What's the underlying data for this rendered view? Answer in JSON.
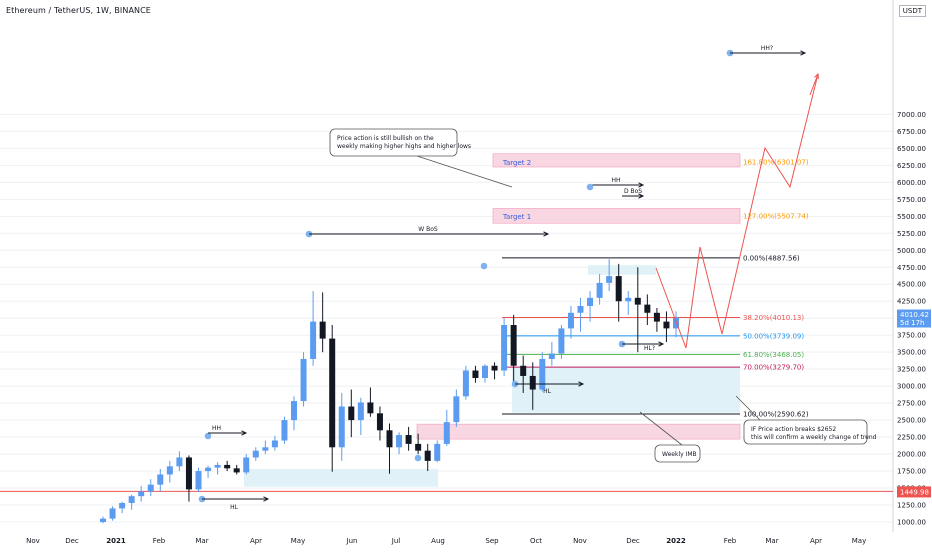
{
  "header": {
    "title": "Ethereum / TetherUS, 1W, BINANCE",
    "currency_button": "USDT"
  },
  "colors": {
    "up": "#5b9cf0",
    "down": "#131722",
    "red": "#ef5350",
    "green": "#4caf50",
    "blue": "#2196f3",
    "magenta": "#e91e63",
    "orange": "#ff9800",
    "pink_box": "#f8d7e3",
    "cyan_box": "#e0f2f7",
    "text": "#131722",
    "axis_text": "#6a6d78",
    "grid": "#eef0f3"
  },
  "chart_data": {
    "type": "candlestick",
    "title": "Ethereum / TetherUS, 1W, BINANCE",
    "ylim": [
      950,
      7100
    ],
    "y_ticks": [
      1000,
      1250,
      1500,
      1750,
      2000,
      2250,
      2500,
      2750,
      3000,
      3250,
      3500,
      3750,
      4000,
      4250,
      4500,
      4750,
      5000,
      5250,
      5500,
      5750,
      6000,
      6250,
      6500,
      6750,
      7000
    ],
    "x_ticks": [
      "Nov",
      "Dec",
      "2021",
      "Feb",
      "Mar",
      "Apr",
      "May",
      "Jun",
      "Jul",
      "Aug",
      "Sep",
      "Oct",
      "Nov",
      "Dec",
      "2022",
      "Feb",
      "Mar",
      "Apr",
      "May"
    ],
    "candles": [
      [
        1000,
        1080,
        980,
        1050
      ],
      [
        1050,
        1230,
        1020,
        1200
      ],
      [
        1200,
        1300,
        1130,
        1280
      ],
      [
        1280,
        1400,
        1180,
        1380
      ],
      [
        1380,
        1530,
        1300,
        1450
      ],
      [
        1450,
        1630,
        1380,
        1550
      ],
      [
        1550,
        1780,
        1450,
        1700
      ],
      [
        1700,
        1900,
        1580,
        1820
      ],
      [
        1820,
        2040,
        1750,
        1950
      ],
      [
        1950,
        1980,
        1300,
        1480
      ],
      [
        1480,
        1800,
        1440,
        1750
      ],
      [
        1750,
        1830,
        1650,
        1800
      ],
      [
        1800,
        1880,
        1700,
        1840
      ],
      [
        1840,
        1900,
        1750,
        1790
      ],
      [
        1790,
        1840,
        1700,
        1730
      ],
      [
        1730,
        2000,
        1700,
        1950
      ],
      [
        1950,
        2100,
        1900,
        2050
      ],
      [
        2050,
        2200,
        2000,
        2100
      ],
      [
        2100,
        2270,
        2050,
        2200
      ],
      [
        2200,
        2550,
        2150,
        2500
      ],
      [
        2500,
        2850,
        2350,
        2780
      ],
      [
        2780,
        3500,
        2700,
        3400
      ],
      [
        3400,
        4400,
        3300,
        3950
      ],
      [
        3950,
        4380,
        3500,
        3700
      ],
      [
        3700,
        3900,
        1740,
        2100
      ],
      [
        2100,
        2900,
        1900,
        2700
      ],
      [
        2700,
        2950,
        2250,
        2500
      ],
      [
        2500,
        2830,
        2280,
        2760
      ],
      [
        2760,
        2980,
        2550,
        2600
      ],
      [
        2600,
        2700,
        2200,
        2350
      ],
      [
        2350,
        2450,
        1710,
        2100
      ],
      [
        2100,
        2320,
        2000,
        2280
      ],
      [
        2280,
        2400,
        2050,
        2150
      ],
      [
        2150,
        2300,
        2000,
        2050
      ],
      [
        2050,
        2150,
        1750,
        1900
      ],
      [
        1900,
        2200,
        1880,
        2150
      ],
      [
        2150,
        2650,
        2120,
        2470
      ],
      [
        2470,
        2950,
        2400,
        2850
      ],
      [
        2850,
        3300,
        2800,
        3230
      ],
      [
        3230,
        3300,
        3050,
        3120
      ],
      [
        3120,
        3320,
        3050,
        3300
      ],
      [
        3300,
        3350,
        3100,
        3230
      ],
      [
        3230,
        4000,
        3150,
        3900
      ],
      [
        3900,
        4050,
        3050,
        3300
      ],
      [
        3300,
        3450,
        2900,
        3150
      ],
      [
        3150,
        3350,
        2650,
        2950
      ],
      [
        2950,
        3500,
        2920,
        3400
      ],
      [
        3400,
        3650,
        3300,
        3480
      ],
      [
        3480,
        3900,
        3400,
        3850
      ],
      [
        3850,
        4180,
        3700,
        4080
      ],
      [
        4080,
        4300,
        3800,
        4180
      ],
      [
        4180,
        4400,
        3950,
        4300
      ],
      [
        4300,
        4650,
        4200,
        4520
      ],
      [
        4520,
        4870,
        4400,
        4620
      ],
      [
        4620,
        4800,
        3950,
        4250
      ],
      [
        4250,
        4400,
        4050,
        4300
      ],
      [
        4300,
        4750,
        3500,
        4200
      ],
      [
        4200,
        4350,
        3900,
        4080
      ],
      [
        4080,
        4150,
        3800,
        3950
      ],
      [
        3950,
        4100,
        3650,
        3850
      ],
      [
        3850,
        4100,
        3720,
        4010
      ]
    ],
    "fib_levels": [
      {
        "label": "0.00%(4887.56)",
        "value": 4887.56
      },
      {
        "label": "38.20%(4010.13)",
        "value": 4010.13
      },
      {
        "label": "50.00%(3739.09)",
        "value": 3739.09
      },
      {
        "label": "61.80%(3468.05)",
        "value": 3468.05
      },
      {
        "label": "70.00%(3279.70)",
        "value": 3279.7
      },
      {
        "label": "100.00%(2590.62)",
        "value": 2590.62
      },
      {
        "label": "127.00%(5507.74)",
        "value": 5507.74
      },
      {
        "label": "161.80%(6301.07)",
        "value": 6301.07
      }
    ],
    "horizontal_line": 1449.98,
    "last_price": {
      "value": "4010.42",
      "countdown": "5d 17h"
    },
    "annotations": [
      "HH?",
      "Target 2",
      "Target 1",
      "HH",
      "D BoS",
      "W BoS",
      "HH",
      "HL",
      "HL?",
      "HL",
      "Weekly IMB",
      "Price action is still bullish on the",
      "weekly making higher highs and higher lows",
      "IF Price action breaks $2652",
      "this will confirm a weekly change of trend"
    ]
  }
}
